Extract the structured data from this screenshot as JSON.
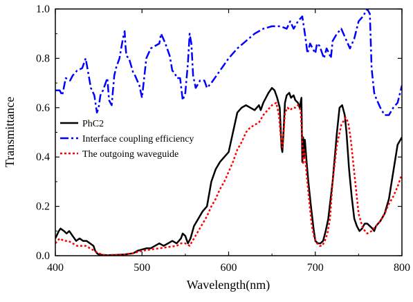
{
  "chart_data": {
    "type": "line",
    "title": "",
    "xlabel": "Wavelength(nm)",
    "ylabel": "Transmittance",
    "xlim": [
      400,
      800
    ],
    "ylim": [
      0.0,
      1.0
    ],
    "xticks": [
      "400",
      "500",
      "600",
      "700",
      "800"
    ],
    "yticks": [
      "0.0",
      "0.2",
      "0.4",
      "0.6",
      "0.8",
      "1.0"
    ],
    "legend": {
      "placement": "center-left"
    },
    "series": [
      {
        "name": "PhC2",
        "color": "#000000",
        "style": "solid",
        "x": [
          400,
          404,
          406,
          410,
          413,
          416,
          420,
          424,
          428,
          432,
          436,
          440,
          444,
          446,
          448,
          450,
          455,
          460,
          470,
          480,
          490,
          495,
          500,
          505,
          510,
          515,
          520,
          525,
          530,
          535,
          540,
          545,
          547,
          550,
          553,
          556,
          560,
          565,
          570,
          575,
          580,
          585,
          590,
          595,
          600,
          605,
          610,
          615,
          620,
          625,
          630,
          635,
          637,
          640,
          643,
          646,
          650,
          653,
          656,
          659,
          661,
          662,
          663,
          665,
          667,
          670,
          672,
          675,
          677,
          680,
          682,
          684,
          685,
          686,
          687,
          688,
          690,
          692,
          695,
          698,
          700,
          703,
          706,
          709,
          712,
          715,
          720,
          725,
          728,
          731,
          734,
          736,
          739,
          742,
          745,
          748,
          751,
          754,
          757,
          760,
          763,
          766,
          768,
          770,
          775,
          780,
          785,
          790,
          795,
          800
        ],
        "y": [
          0.07,
          0.1,
          0.11,
          0.1,
          0.09,
          0.1,
          0.08,
          0.06,
          0.07,
          0.06,
          0.06,
          0.05,
          0.04,
          0.02,
          0.01,
          0.005,
          0.003,
          0.002,
          0.003,
          0.005,
          0.01,
          0.02,
          0.025,
          0.03,
          0.03,
          0.04,
          0.05,
          0.04,
          0.05,
          0.06,
          0.05,
          0.07,
          0.09,
          0.08,
          0.05,
          0.07,
          0.12,
          0.15,
          0.18,
          0.2,
          0.3,
          0.35,
          0.38,
          0.4,
          0.42,
          0.5,
          0.58,
          0.6,
          0.61,
          0.6,
          0.59,
          0.61,
          0.59,
          0.62,
          0.64,
          0.66,
          0.68,
          0.67,
          0.64,
          0.6,
          0.44,
          0.42,
          0.48,
          0.62,
          0.65,
          0.66,
          0.64,
          0.65,
          0.63,
          0.62,
          0.6,
          0.64,
          0.38,
          0.48,
          0.4,
          0.47,
          0.38,
          0.3,
          0.2,
          0.11,
          0.06,
          0.05,
          0.05,
          0.06,
          0.1,
          0.15,
          0.3,
          0.5,
          0.6,
          0.61,
          0.57,
          0.5,
          0.35,
          0.24,
          0.15,
          0.12,
          0.1,
          0.11,
          0.13,
          0.13,
          0.12,
          0.11,
          0.1,
          0.12,
          0.14,
          0.17,
          0.23,
          0.34,
          0.45,
          0.48
        ]
      },
      {
        "name": "Interface coupling efficiency",
        "color": "#0000ff",
        "style": "dash-dot",
        "x": [
          400,
          405,
          408,
          412,
          417,
          420,
          425,
          431,
          435,
          438,
          441,
          445,
          448,
          450,
          452,
          455,
          460,
          462,
          465,
          468,
          470,
          474,
          478,
          480,
          481,
          482,
          485,
          490,
          492,
          497,
          500,
          505,
          510,
          520,
          522,
          527,
          529,
          532,
          535,
          538,
          540,
          544,
          547,
          550,
          553,
          555,
          557,
          559,
          562,
          567,
          572,
          575,
          580,
          590,
          600,
          610,
          620,
          630,
          640,
          650,
          660,
          667,
          671,
          675,
          680,
          685,
          688,
          691,
          694,
          697,
          700,
          702,
          705,
          708,
          710,
          713,
          716,
          718,
          720,
          725,
          730,
          735,
          740,
          745,
          750,
          755,
          760,
          763,
          765,
          768,
          770,
          775,
          780,
          785,
          790,
          795,
          800
        ],
        "y": [
          0.67,
          0.67,
          0.65,
          0.72,
          0.71,
          0.73,
          0.75,
          0.76,
          0.8,
          0.74,
          0.68,
          0.65,
          0.58,
          0.6,
          0.65,
          0.67,
          0.72,
          0.63,
          0.61,
          0.73,
          0.76,
          0.8,
          0.88,
          0.91,
          0.85,
          0.81,
          0.8,
          0.74,
          0.73,
          0.69,
          0.64,
          0.8,
          0.84,
          0.86,
          0.9,
          0.86,
          0.84,
          0.81,
          0.75,
          0.74,
          0.72,
          0.72,
          0.63,
          0.66,
          0.78,
          0.9,
          0.86,
          0.73,
          0.68,
          0.71,
          0.71,
          0.68,
          0.7,
          0.75,
          0.8,
          0.84,
          0.87,
          0.9,
          0.92,
          0.93,
          0.93,
          0.92,
          0.95,
          0.92,
          0.95,
          0.97,
          0.9,
          0.82,
          0.86,
          0.84,
          0.82,
          0.86,
          0.85,
          0.82,
          0.8,
          0.84,
          0.82,
          0.8,
          0.87,
          0.9,
          0.92,
          0.88,
          0.84,
          0.88,
          0.95,
          0.97,
          1.0,
          0.98,
          0.76,
          0.66,
          0.64,
          0.6,
          0.57,
          0.57,
          0.6,
          0.62,
          0.69
        ]
      },
      {
        "name": "The outgoing waveguide",
        "color": "#ff0000",
        "style": "dotted",
        "x": [
          400,
          405,
          410,
          415,
          420,
          425,
          430,
          435,
          440,
          445,
          450,
          455,
          460,
          470,
          480,
          490,
          500,
          510,
          520,
          530,
          540,
          545,
          550,
          555,
          560,
          565,
          570,
          575,
          580,
          585,
          590,
          595,
          600,
          605,
          610,
          615,
          620,
          625,
          630,
          635,
          640,
          645,
          650,
          655,
          658,
          661,
          662,
          663,
          665,
          668,
          671,
          674,
          677,
          680,
          683,
          685,
          686,
          687,
          688,
          690,
          693,
          696,
          699,
          702,
          705,
          708,
          711,
          714,
          717,
          720,
          725,
          730,
          735,
          738,
          741,
          744,
          747,
          750,
          755,
          760,
          765,
          770,
          775,
          780,
          785,
          790,
          795,
          800
        ],
        "y": [
          0.05,
          0.07,
          0.06,
          0.06,
          0.05,
          0.04,
          0.04,
          0.04,
          0.03,
          0.02,
          0.01,
          0.003,
          0.002,
          0.003,
          0.005,
          0.01,
          0.02,
          0.025,
          0.03,
          0.035,
          0.04,
          0.05,
          0.05,
          0.04,
          0.07,
          0.1,
          0.13,
          0.16,
          0.2,
          0.23,
          0.27,
          0.3,
          0.34,
          0.38,
          0.43,
          0.46,
          0.5,
          0.52,
          0.53,
          0.54,
          0.57,
          0.59,
          0.61,
          0.62,
          0.57,
          0.45,
          0.44,
          0.47,
          0.58,
          0.6,
          0.59,
          0.6,
          0.6,
          0.61,
          0.59,
          0.47,
          0.37,
          0.43,
          0.41,
          0.33,
          0.22,
          0.12,
          0.07,
          0.05,
          0.04,
          0.04,
          0.06,
          0.09,
          0.15,
          0.3,
          0.45,
          0.53,
          0.56,
          0.54,
          0.47,
          0.37,
          0.27,
          0.17,
          0.11,
          0.09,
          0.1,
          0.12,
          0.14,
          0.17,
          0.21,
          0.24,
          0.28,
          0.33
        ]
      }
    ]
  }
}
